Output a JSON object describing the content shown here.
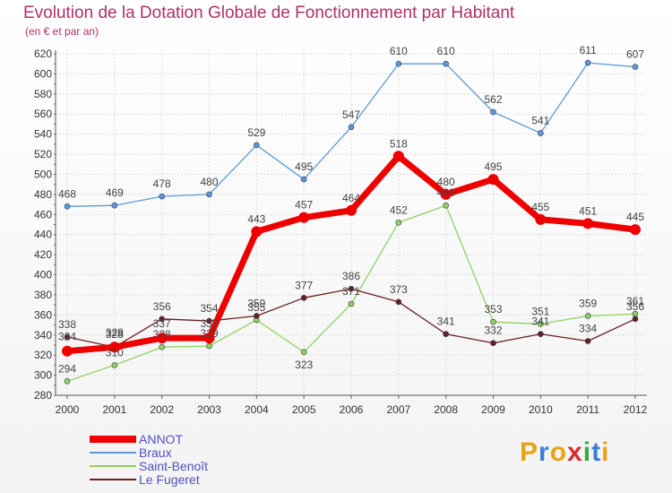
{
  "title": "Evolution de la Dotation Globale de Fonctionnement par Habitant",
  "subtitle": "(en € et par an)",
  "logo_text": "Proxiti",
  "chart_data": {
    "type": "line",
    "title": "Evolution de la Dotation Globale de Fonctionnement par Habitant",
    "subtitle": "(en € et par an)",
    "xlabel": "",
    "ylabel": "",
    "ylim": [
      280,
      620
    ],
    "yticks": [
      280,
      300,
      320,
      340,
      360,
      380,
      400,
      420,
      440,
      460,
      480,
      500,
      520,
      540,
      560,
      580,
      600,
      620
    ],
    "categories": [
      "2000",
      "2001",
      "2002",
      "2003",
      "2004",
      "2005",
      "2006",
      "2007",
      "2008",
      "2009",
      "2010",
      "2011",
      "2012"
    ],
    "series": [
      {
        "name": "ANNOT",
        "color": "#ee0000",
        "values": [
          324,
          328,
          337,
          337,
          443,
          457,
          464,
          518,
          480,
          495,
          455,
          451,
          445
        ]
      },
      {
        "name": "Braux",
        "color": "#5b9bd5",
        "values": [
          468,
          469,
          478,
          480,
          529,
          495,
          547,
          610,
          610,
          562,
          541,
          611,
          607
        ]
      },
      {
        "name": "Saint-Benoît",
        "color": "#8fd35f",
        "values": [
          294,
          310,
          328,
          329,
          355,
          323,
          371,
          452,
          469,
          353,
          351,
          359,
          361
        ]
      },
      {
        "name": "Le Fugeret",
        "color": "#6b2020",
        "values": [
          338,
          328,
          356,
          354,
          359,
          377,
          386,
          373,
          341,
          332,
          341,
          334,
          356
        ]
      }
    ],
    "legend_position": "bottom-left"
  }
}
